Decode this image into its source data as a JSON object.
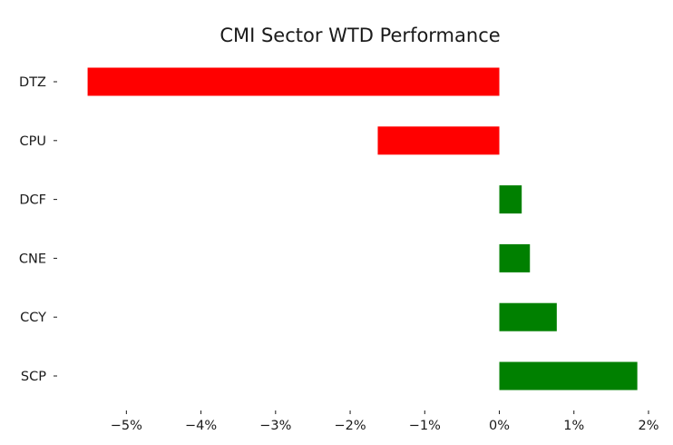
{
  "chart_data": {
    "type": "bar",
    "orientation": "horizontal",
    "title": "CMI Sector WTD Performance",
    "xlabel": "",
    "ylabel": "",
    "categories": [
      "DTZ",
      "CPU",
      "DCF",
      "CNE",
      "CCY",
      "SCP"
    ],
    "values": [
      -5.52,
      -1.63,
      0.3,
      0.41,
      0.77,
      1.85
    ],
    "xlim": [
      -5.6,
      2.0
    ],
    "xticks": [
      -5,
      -4,
      -3,
      -2,
      -1,
      0,
      1,
      2
    ],
    "xtick_labels": [
      "−5%",
      "−4%",
      "−3%",
      "−2%",
      "−1%",
      "0%",
      "1%",
      "2%"
    ],
    "grid": false,
    "legend": "none",
    "colors": {
      "positive": "#008000",
      "negative": "#ff0000"
    }
  }
}
